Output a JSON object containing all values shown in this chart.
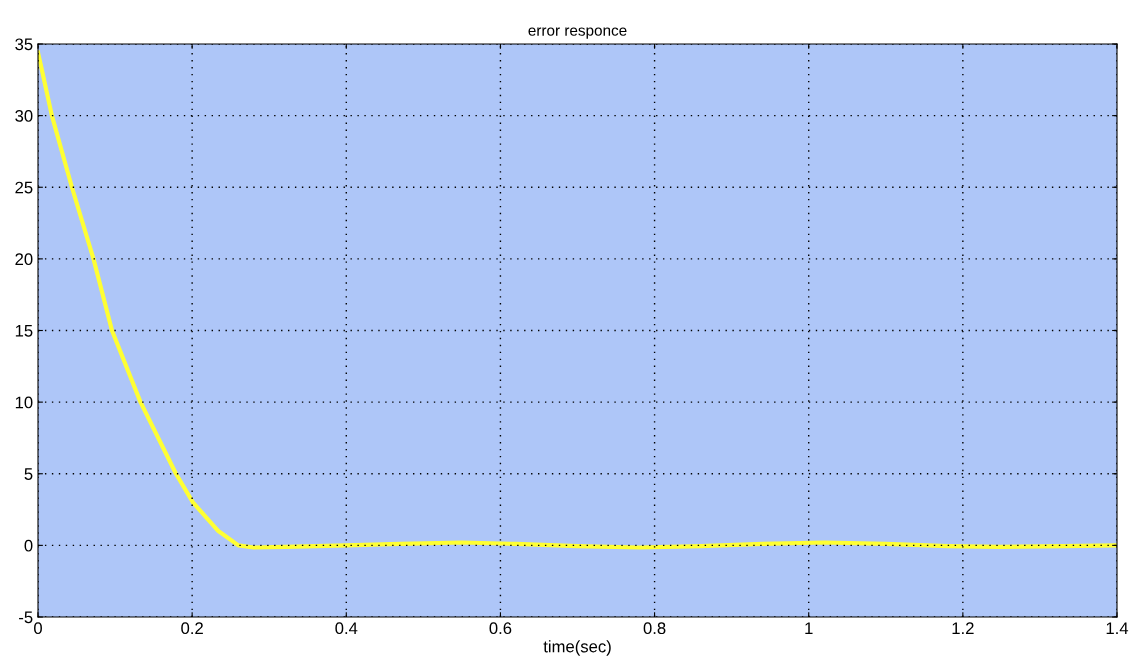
{
  "chart_data": {
    "type": "line",
    "title": "error responce",
    "xlabel": "time(sec)",
    "series": [
      {
        "color": "#ffff33",
        "x": [
          0,
          0.005,
          0.018,
          0.044,
          0.072,
          0.096,
          0.133,
          0.179,
          0.201,
          0.234,
          0.26,
          0.28,
          0.32,
          0.4,
          0.47,
          0.55,
          0.62,
          0.7,
          0.78,
          0.86,
          0.94,
          1.02,
          1.1,
          1.18,
          1.25,
          1.33,
          1.4
        ],
        "values": [
          34.4,
          33.2,
          30,
          25,
          20,
          15,
          10,
          5,
          3,
          1,
          0,
          -0.15,
          -0.1,
          0,
          0.1,
          0.2,
          0.1,
          -0.05,
          -0.15,
          -0.05,
          0.1,
          0.2,
          0.1,
          -0.05,
          -0.1,
          -0.05,
          0
        ]
      }
    ],
    "xlim": [
      0,
      1.4
    ],
    "ylim": [
      -5,
      35
    ],
    "xticks": [
      0,
      0.2,
      0.4,
      0.6,
      0.8,
      1,
      1.2,
      1.4
    ],
    "yticks": [
      -5,
      0,
      5,
      10,
      15,
      20,
      25,
      30,
      35
    ],
    "grid": true,
    "line_style": "solid",
    "marker": "none",
    "legend": false
  }
}
